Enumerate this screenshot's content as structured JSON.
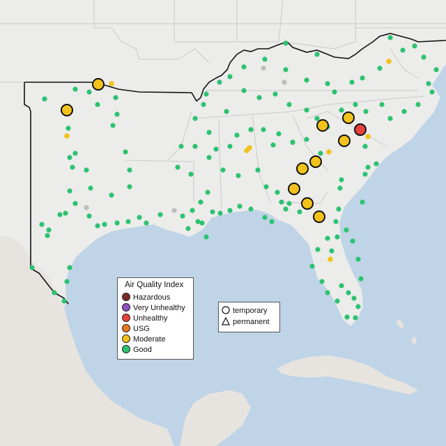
{
  "legend_aqi": {
    "title": "Air Quality Index",
    "items": [
      {
        "label": "Hazardous",
        "color": "#7e2a2a"
      },
      {
        "label": "Very Unhealthy",
        "color": "#8f4fbf"
      },
      {
        "label": "Unhealthy",
        "color": "#e8413b"
      },
      {
        "label": "USG",
        "color": "#e87a1f"
      },
      {
        "label": "Moderate",
        "color": "#f2c21b"
      },
      {
        "label": "Good",
        "color": "#2dc272"
      }
    ]
  },
  "legend_type": {
    "items": [
      {
        "label": "temporary",
        "icon": "circle-icon"
      },
      {
        "label": "permanent",
        "icon": "triangle-icon"
      }
    ]
  },
  "map_colors": {
    "water": "#bfd4e6",
    "land": "#ececea",
    "border": "#c9c9c9",
    "highlight_outline": "#000000",
    "offline": "#bdbdbd"
  }
}
